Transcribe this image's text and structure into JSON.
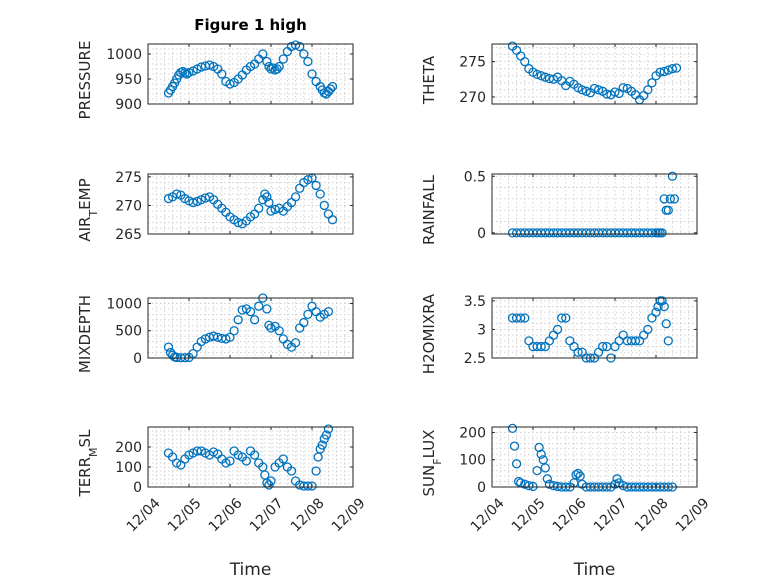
{
  "figure": {
    "title": "Figure 1 high"
  },
  "chart_data": [
    {
      "type": "scatter",
      "panel": "top-left",
      "title": "Figure 1 high",
      "ylabel": "PRESSURE",
      "ylabel_parts": [
        {
          "t": "PRESSURE",
          "sub": false
        }
      ],
      "xlabel": "",
      "xlim": [
        0,
        5
      ],
      "ylim": [
        900,
        1020
      ],
      "yticks": [
        900,
        950,
        1000
      ],
      "xticks": [
        0,
        1,
        2,
        3,
        4,
        5
      ],
      "xticklabels": [
        "12/04",
        "12/05",
        "12/06",
        "12/07",
        "12/08",
        "12/09"
      ],
      "show_xticklabels": false,
      "grid": true,
      "series": [
        {
          "x": [
            0.5,
            0.55,
            0.6,
            0.65,
            0.7,
            0.75,
            0.8,
            0.85,
            0.9,
            0.95,
            1.0,
            1.1,
            1.2,
            1.3,
            1.4,
            1.5,
            1.6,
            1.7,
            1.8,
            1.9,
            2.0,
            2.1,
            2.2,
            2.3,
            2.4,
            2.5,
            2.6,
            2.7,
            2.8,
            2.9,
            2.95,
            3.0,
            3.05,
            3.1,
            3.15,
            3.2,
            3.3,
            3.4,
            3.5,
            3.6,
            3.7,
            3.8,
            3.9,
            4.0,
            4.1,
            4.2,
            4.25,
            4.3,
            4.35,
            4.4,
            4.45,
            4.5
          ],
          "y": [
            922,
            928,
            935,
            942,
            950,
            958,
            963,
            965,
            962,
            960,
            963,
            966,
            970,
            974,
            976,
            978,
            975,
            970,
            960,
            945,
            940,
            943,
            950,
            958,
            968,
            975,
            980,
            990,
            1000,
            985,
            975,
            970,
            972,
            968,
            970,
            975,
            990,
            1005,
            1015,
            1018,
            1015,
            1000,
            985,
            960,
            945,
            935,
            928,
            922,
            920,
            925,
            930,
            935
          ]
        }
      ]
    },
    {
      "type": "scatter",
      "panel": "top-right",
      "ylabel": "THETA",
      "ylabel_parts": [
        {
          "t": "THETA",
          "sub": false
        }
      ],
      "xlabel": "",
      "xlim": [
        0,
        5
      ],
      "ylim": [
        269,
        277.5
      ],
      "yticks": [
        270,
        275
      ],
      "xticks": [
        0,
        1,
        2,
        3,
        4,
        5
      ],
      "xticklabels": [
        "12/04",
        "12/05",
        "12/06",
        "12/07",
        "12/08",
        "12/09"
      ],
      "show_xticklabels": false,
      "grid": true,
      "series": [
        {
          "x": [
            0.5,
            0.6,
            0.7,
            0.8,
            0.9,
            1.0,
            1.1,
            1.2,
            1.3,
            1.4,
            1.5,
            1.6,
            1.7,
            1.8,
            1.9,
            2.0,
            2.1,
            2.2,
            2.3,
            2.4,
            2.5,
            2.6,
            2.7,
            2.8,
            2.9,
            3.0,
            3.1,
            3.2,
            3.3,
            3.4,
            3.5,
            3.6,
            3.7,
            3.8,
            3.9,
            4.0,
            4.1,
            4.2,
            4.3,
            4.4,
            4.5
          ],
          "y": [
            277.2,
            276.6,
            275.8,
            275.0,
            274.0,
            273.5,
            273.2,
            273.0,
            272.8,
            272.6,
            272.5,
            272.8,
            272.3,
            271.6,
            272.2,
            271.8,
            271.3,
            271.0,
            270.8,
            270.6,
            271.2,
            271.0,
            270.8,
            270.4,
            270.3,
            270.7,
            270.5,
            271.3,
            271.2,
            270.8,
            270.3,
            269.6,
            270.2,
            271.0,
            272.0,
            273.0,
            273.5,
            273.6,
            273.8,
            274.0,
            274.1
          ]
        }
      ]
    },
    {
      "type": "scatter",
      "panel": "row2-left",
      "ylabel": "AIR_TEMP",
      "ylabel_parts": [
        {
          "t": "AIR",
          "sub": false
        },
        {
          "t": "T",
          "sub": true
        },
        {
          "t": "EMP",
          "sub": false
        }
      ],
      "xlabel": "",
      "xlim": [
        0,
        5
      ],
      "ylim": [
        265,
        275.5
      ],
      "yticks": [
        265,
        270,
        275
      ],
      "xticks": [
        0,
        1,
        2,
        3,
        4,
        5
      ],
      "xticklabels": [
        "12/04",
        "12/05",
        "12/06",
        "12/07",
        "12/08",
        "12/09"
      ],
      "show_xticklabels": false,
      "grid": true,
      "series": [
        {
          "x": [
            0.5,
            0.6,
            0.7,
            0.8,
            0.9,
            1.0,
            1.1,
            1.2,
            1.3,
            1.4,
            1.5,
            1.6,
            1.7,
            1.8,
            1.9,
            2.0,
            2.1,
            2.2,
            2.3,
            2.4,
            2.5,
            2.6,
            2.7,
            2.8,
            2.85,
            2.9,
            2.95,
            3.0,
            3.1,
            3.2,
            3.3,
            3.4,
            3.5,
            3.6,
            3.7,
            3.8,
            3.9,
            4.0,
            4.1,
            4.2,
            4.3,
            4.4,
            4.5
          ],
          "y": [
            271.2,
            271.5,
            272.0,
            271.8,
            271.2,
            270.8,
            270.5,
            270.7,
            271.0,
            271.3,
            271.5,
            271.0,
            270.2,
            269.5,
            268.8,
            268.0,
            267.5,
            267.0,
            266.8,
            267.3,
            268.0,
            268.5,
            269.5,
            271.0,
            272.0,
            271.5,
            270.5,
            269.0,
            269.3,
            269.5,
            269.0,
            269.8,
            270.5,
            271.5,
            273.0,
            274.0,
            274.5,
            274.8,
            273.5,
            272.0,
            270.0,
            268.5,
            267.5
          ]
        }
      ]
    },
    {
      "type": "scatter",
      "panel": "row2-right",
      "ylabel": "RAINFALL",
      "ylabel_parts": [
        {
          "t": "RAINFALL",
          "sub": false
        }
      ],
      "xlabel": "",
      "xlim": [
        0,
        5
      ],
      "ylim": [
        -0.01,
        0.52
      ],
      "yticks": [
        0,
        0.5
      ],
      "xticks": [
        0,
        1,
        2,
        3,
        4,
        5
      ],
      "xticklabels": [
        "12/04",
        "12/05",
        "12/06",
        "12/07",
        "12/08",
        "12/09"
      ],
      "show_xticklabels": false,
      "grid": true,
      "series": [
        {
          "x": [
            0.5,
            0.6,
            0.7,
            0.8,
            0.9,
            1.0,
            1.1,
            1.2,
            1.3,
            1.4,
            1.5,
            1.6,
            1.7,
            1.8,
            1.9,
            2.0,
            2.1,
            2.2,
            2.3,
            2.4,
            2.5,
            2.6,
            2.7,
            2.8,
            2.9,
            3.0,
            3.1,
            3.2,
            3.3,
            3.4,
            3.5,
            3.6,
            3.7,
            3.8,
            3.9,
            4.0,
            4.05,
            4.1,
            4.15,
            4.2,
            4.25,
            4.3,
            4.35,
            4.4,
            4.45
          ],
          "y": [
            0,
            0,
            0,
            0,
            0,
            0,
            0,
            0,
            0,
            0,
            0,
            0,
            0,
            0,
            0,
            0,
            0,
            0,
            0,
            0,
            0,
            0,
            0,
            0,
            0,
            0,
            0,
            0,
            0,
            0,
            0,
            0,
            0,
            0,
            0,
            0,
            0,
            0,
            0,
            0.3,
            0.2,
            0.2,
            0.3,
            0.5,
            0.3
          ]
        }
      ]
    },
    {
      "type": "scatter",
      "panel": "row3-left",
      "ylabel": "MIXDEPTH",
      "ylabel_parts": [
        {
          "t": "MIXDEPTH",
          "sub": false
        }
      ],
      "xlabel": "",
      "xlim": [
        0,
        5
      ],
      "ylim": [
        0,
        1100
      ],
      "yticks": [
        0,
        500,
        1000
      ],
      "xticks": [
        0,
        1,
        2,
        3,
        4,
        5
      ],
      "xticklabels": [
        "12/04",
        "12/05",
        "12/06",
        "12/07",
        "12/08",
        "12/09"
      ],
      "show_xticklabels": false,
      "grid": true,
      "series": [
        {
          "x": [
            0.5,
            0.55,
            0.6,
            0.65,
            0.7,
            0.8,
            0.9,
            1.0,
            1.1,
            1.2,
            1.3,
            1.4,
            1.5,
            1.6,
            1.7,
            1.8,
            1.9,
            2.0,
            2.1,
            2.2,
            2.3,
            2.4,
            2.5,
            2.6,
            2.7,
            2.8,
            2.9,
            2.95,
            3.0,
            3.1,
            3.2,
            3.3,
            3.4,
            3.5,
            3.6,
            3.7,
            3.8,
            3.9,
            4.0,
            4.1,
            4.2,
            4.3,
            4.4
          ],
          "y": [
            200,
            100,
            50,
            20,
            10,
            5,
            5,
            10,
            80,
            200,
            300,
            350,
            380,
            400,
            380,
            360,
            350,
            380,
            500,
            700,
            880,
            900,
            850,
            700,
            950,
            1100,
            900,
            600,
            550,
            580,
            500,
            350,
            250,
            200,
            280,
            550,
            650,
            800,
            950,
            850,
            750,
            800,
            850
          ]
        }
      ]
    },
    {
      "type": "scatter",
      "panel": "row3-right",
      "ylabel": "H2OMIXRA",
      "ylabel_parts": [
        {
          "t": "H2OMIXRA",
          "sub": false
        }
      ],
      "xlabel": "",
      "xlim": [
        0,
        5
      ],
      "ylim": [
        2.5,
        3.55
      ],
      "yticks": [
        2.5,
        3,
        3.5
      ],
      "xticks": [
        0,
        1,
        2,
        3,
        4,
        5
      ],
      "xticklabels": [
        "12/04",
        "12/05",
        "12/06",
        "12/07",
        "12/08",
        "12/09"
      ],
      "show_xticklabels": false,
      "grid": true,
      "series": [
        {
          "x": [
            0.5,
            0.6,
            0.7,
            0.8,
            0.9,
            1.0,
            1.1,
            1.2,
            1.3,
            1.4,
            1.5,
            1.6,
            1.7,
            1.8,
            1.9,
            2.0,
            2.1,
            2.2,
            2.3,
            2.4,
            2.5,
            2.6,
            2.7,
            2.8,
            2.9,
            3.0,
            3.1,
            3.2,
            3.3,
            3.4,
            3.5,
            3.6,
            3.7,
            3.8,
            3.9,
            4.0,
            4.05,
            4.1,
            4.15,
            4.2,
            4.25,
            4.3
          ],
          "y": [
            3.2,
            3.2,
            3.2,
            3.2,
            2.8,
            2.7,
            2.7,
            2.7,
            2.7,
            2.8,
            2.9,
            3.0,
            3.2,
            3.2,
            2.8,
            2.7,
            2.6,
            2.6,
            2.5,
            2.5,
            2.5,
            2.6,
            2.7,
            2.7,
            2.5,
            2.7,
            2.8,
            2.9,
            2.8,
            2.8,
            2.8,
            2.8,
            2.9,
            3.0,
            3.2,
            3.3,
            3.4,
            3.5,
            3.5,
            3.4,
            3.1,
            2.8
          ]
        }
      ]
    },
    {
      "type": "scatter",
      "panel": "bottom-left",
      "ylabel": "TERR_MSL",
      "ylabel_parts": [
        {
          "t": "TERR",
          "sub": false
        },
        {
          "t": "M",
          "sub": true
        },
        {
          "t": "SL",
          "sub": false
        }
      ],
      "xlabel": "Time",
      "xlim": [
        0,
        5
      ],
      "ylim": [
        0,
        300
      ],
      "yticks": [
        0,
        100,
        200
      ],
      "xticks": [
        0,
        1,
        2,
        3,
        4,
        5
      ],
      "xticklabels": [
        "12/04",
        "12/05",
        "12/06",
        "12/07",
        "12/08",
        "12/09"
      ],
      "show_xticklabels": true,
      "grid": true,
      "series": [
        {
          "x": [
            0.5,
            0.6,
            0.7,
            0.8,
            0.9,
            1.0,
            1.1,
            1.2,
            1.3,
            1.4,
            1.5,
            1.6,
            1.7,
            1.8,
            1.9,
            2.0,
            2.1,
            2.2,
            2.3,
            2.4,
            2.5,
            2.6,
            2.7,
            2.8,
            2.85,
            2.9,
            2.95,
            3.0,
            3.1,
            3.2,
            3.3,
            3.4,
            3.5,
            3.6,
            3.7,
            3.8,
            3.9,
            4.0,
            4.1,
            4.15,
            4.2,
            4.25,
            4.3,
            4.35,
            4.4
          ],
          "y": [
            170,
            150,
            120,
            110,
            140,
            160,
            170,
            180,
            180,
            170,
            160,
            175,
            165,
            140,
            120,
            130,
            180,
            160,
            150,
            130,
            180,
            160,
            120,
            100,
            60,
            20,
            10,
            30,
            100,
            120,
            140,
            100,
            80,
            30,
            10,
            5,
            5,
            5,
            80,
            150,
            190,
            210,
            240,
            260,
            290
          ]
        }
      ]
    },
    {
      "type": "scatter",
      "panel": "bottom-right",
      "ylabel": "SUN_FLUX",
      "ylabel_parts": [
        {
          "t": "SUN",
          "sub": false
        },
        {
          "t": "F",
          "sub": true
        },
        {
          "t": "LUX",
          "sub": false
        }
      ],
      "xlabel": "Time",
      "xlim": [
        0,
        5
      ],
      "ylim": [
        0,
        220
      ],
      "yticks": [
        0,
        100,
        200
      ],
      "xticks": [
        0,
        1,
        2,
        3,
        4,
        5
      ],
      "xticklabels": [
        "12/04",
        "12/05",
        "12/06",
        "12/07",
        "12/08",
        "12/09"
      ],
      "show_xticklabels": true,
      "grid": true,
      "series": [
        {
          "x": [
            0.5,
            0.55,
            0.6,
            0.65,
            0.7,
            0.8,
            0.9,
            1.0,
            1.1,
            1.15,
            1.2,
            1.25,
            1.3,
            1.35,
            1.4,
            1.5,
            1.6,
            1.7,
            1.8,
            1.9,
            2.0,
            2.05,
            2.1,
            2.15,
            2.2,
            2.3,
            2.4,
            2.5,
            2.6,
            2.7,
            2.8,
            2.9,
            3.0,
            3.05,
            3.1,
            3.2,
            3.3,
            3.4,
            3.5,
            3.6,
            3.7,
            3.8,
            3.9,
            4.0,
            4.1,
            4.2,
            4.3,
            4.4
          ],
          "y": [
            215,
            150,
            85,
            20,
            15,
            10,
            5,
            2,
            60,
            145,
            120,
            100,
            70,
            30,
            10,
            5,
            2,
            0,
            0,
            0,
            15,
            45,
            50,
            40,
            10,
            0,
            0,
            0,
            0,
            0,
            0,
            0,
            10,
            30,
            15,
            5,
            0,
            0,
            0,
            0,
            0,
            0,
            0,
            0,
            0,
            0,
            0,
            0
          ]
        }
      ]
    }
  ]
}
